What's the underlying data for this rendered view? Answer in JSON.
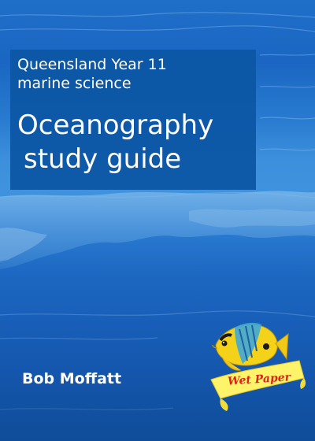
{
  "cover": {
    "subtitle_line1": "Queensland Year 11",
    "subtitle_line2": "marine science",
    "title_line1": "Oceanography",
    "title_line2": "study guide",
    "author": "Bob Moffatt",
    "publisher_logo_text": "Wet Paper",
    "title_box_color": "#0d56a6",
    "ocean_color": "#1a66c2",
    "logo_fish_icon": "butterflyfish-icon"
  }
}
